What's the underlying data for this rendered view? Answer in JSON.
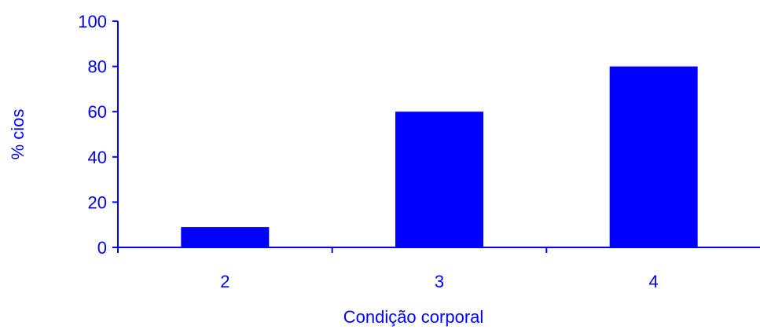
{
  "chart_data": {
    "type": "bar",
    "categories": [
      "2",
      "3",
      "4"
    ],
    "values": [
      9,
      60,
      80
    ],
    "xlabel": "Condição corporal",
    "ylabel": "% cios",
    "ylim": [
      0,
      100
    ],
    "yticks": [
      0,
      20,
      40,
      60,
      80,
      100
    ],
    "grid": false,
    "legend": "none",
    "bar_color": "#0000FF",
    "axis_color": "#0000FF",
    "text_color": "#0000FF"
  }
}
